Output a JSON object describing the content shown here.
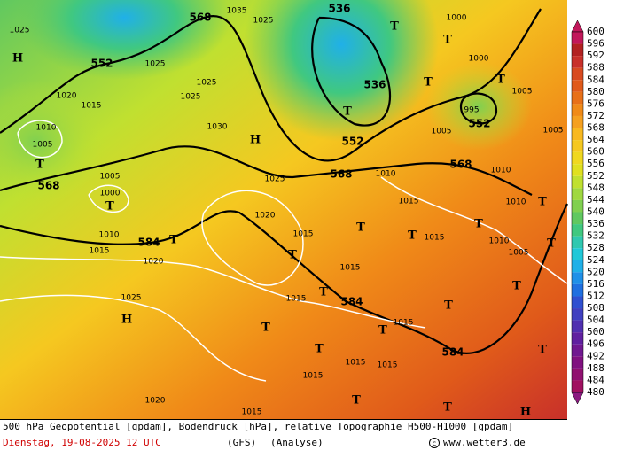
{
  "map": {
    "geopotential_labels": [
      552,
      568,
      536,
      536,
      552,
      552,
      568,
      568,
      568,
      584,
      584,
      584
    ],
    "pressure_labels": [
      1025,
      1025,
      1025,
      1025,
      1020,
      1015,
      1010,
      1005,
      1005,
      1000,
      1010,
      1015,
      1020,
      1025,
      1030,
      1035,
      1025,
      1000,
      1000,
      995,
      1005,
      1010,
      1010,
      1025,
      1020,
      1015,
      1015,
      1015,
      1015,
      1015,
      1015,
      1015,
      1015,
      1015,
      1020,
      1015,
      1005,
      1010,
      1010,
      1005,
      1005
    ],
    "centers": [
      "H",
      "H",
      "H",
      "H",
      "T",
      "T",
      "T",
      "T",
      "T",
      "T",
      "T",
      "T",
      "T",
      "T",
      "T",
      "T",
      "T",
      "T",
      "T",
      "T",
      "T",
      "T",
      "T",
      "T",
      "T",
      "T",
      "T"
    ],
    "colorbar": {
      "ticks": [
        600,
        596,
        592,
        588,
        584,
        580,
        576,
        572,
        568,
        564,
        560,
        556,
        552,
        548,
        544,
        540,
        536,
        532,
        528,
        524,
        520,
        516,
        512,
        508,
        504,
        500,
        496,
        492,
        488,
        484,
        480
      ],
      "colors": [
        "#c2185b",
        "#b22222",
        "#c8302a",
        "#d84a20",
        "#e05a1a",
        "#e87018",
        "#f08a18",
        "#f5a020",
        "#f8b820",
        "#f5c820",
        "#f0d820",
        "#e0e020",
        "#c0e030",
        "#a0d840",
        "#80d050",
        "#60c860",
        "#40c880",
        "#30c8b0",
        "#20c8d8",
        "#20b0e8",
        "#2090e8",
        "#2070e0",
        "#3050d0",
        "#4040c0",
        "#5030b0",
        "#6020a0",
        "#701890",
        "#801080",
        "#901070",
        "#a01060",
        "#8a1a80"
      ]
    }
  },
  "footer": {
    "description": "500 hPa Geopotential [gpdam], Bodendruck [hPa], relative Topographie H500-H1000 [gpdam]",
    "date": "Dienstag, 19-08-2025  12 UTC",
    "model": "(GFS)",
    "run": "(Analyse)",
    "site": "www.wetter3.de"
  }
}
